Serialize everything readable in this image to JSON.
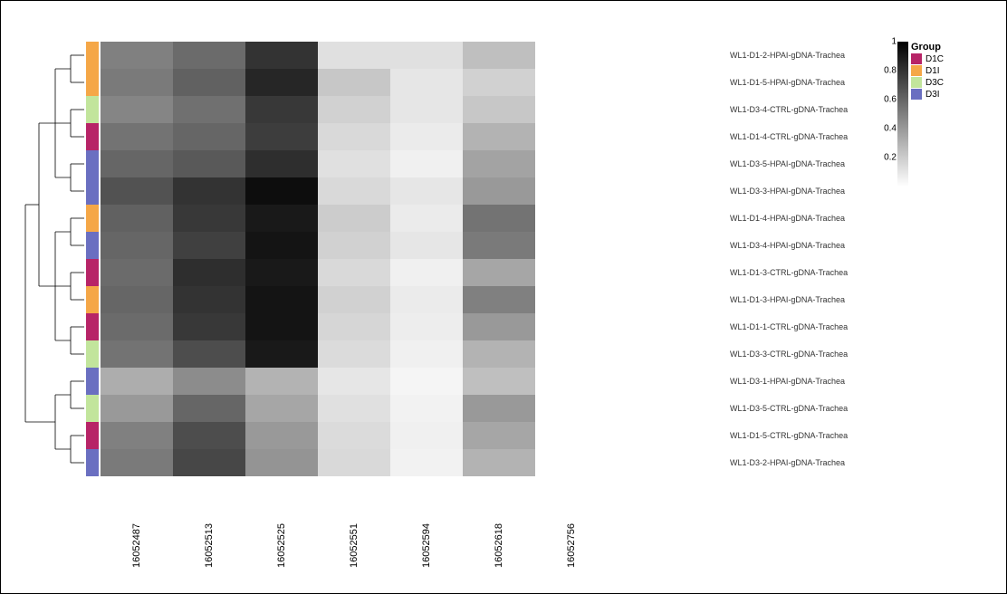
{
  "heatmap": {
    "type": "heatmap",
    "columns": [
      "16052487",
      "16052513",
      "16052525",
      "16052551",
      "16052594",
      "16052618",
      "16052756"
    ],
    "rows": [
      {
        "label": "WL1-D1-2-HPAI-gDNA-Trachea",
        "group": "D1I"
      },
      {
        "label": "WL1-D1-5-HPAI-gDNA-Trachea",
        "group": "D1I"
      },
      {
        "label": "WL1-D3-4-CTRL-gDNA-Trachea",
        "group": "D3C"
      },
      {
        "label": "WL1-D1-4-CTRL-gDNA-Trachea",
        "group": "D1C"
      },
      {
        "label": "WL1-D3-5-HPAI-gDNA-Trachea",
        "group": "D3I"
      },
      {
        "label": "WL1-D3-3-HPAI-gDNA-Trachea",
        "group": "D3I"
      },
      {
        "label": "WL1-D1-4-HPAI-gDNA-Trachea",
        "group": "D1I"
      },
      {
        "label": "WL1-D3-4-HPAI-gDNA-Trachea",
        "group": "D3I"
      },
      {
        "label": "WL1-D1-3-CTRL-gDNA-Trachea",
        "group": "D1C"
      },
      {
        "label": "WL1-D1-3-HPAI-gDNA-Trachea",
        "group": "D1I"
      },
      {
        "label": "WL1-D1-1-CTRL-gDNA-Trachea",
        "group": "D1C"
      },
      {
        "label": "WL1-D3-3-CTRL-gDNA-Trachea",
        "group": "D3C"
      },
      {
        "label": "WL1-D3-1-HPAI-gDNA-Trachea",
        "group": "D3I"
      },
      {
        "label": "WL1-D3-5-CTRL-gDNA-Trachea",
        "group": "D3C"
      },
      {
        "label": "WL1-D1-5-CTRL-gDNA-Trachea",
        "group": "D1C"
      },
      {
        "label": "WL1-D3-2-HPAI-gDNA-Trachea",
        "group": "D3I"
      }
    ],
    "values": [
      [
        0.5,
        0.58,
        0.8,
        0.12,
        0.12,
        0.25,
        0.0
      ],
      [
        0.52,
        0.62,
        0.85,
        0.22,
        0.1,
        0.18,
        0.0
      ],
      [
        0.48,
        0.56,
        0.78,
        0.18,
        0.1,
        0.22,
        0.0
      ],
      [
        0.55,
        0.6,
        0.76,
        0.15,
        0.08,
        0.3,
        0.0
      ],
      [
        0.6,
        0.65,
        0.82,
        0.12,
        0.06,
        0.36,
        0.0
      ],
      [
        0.68,
        0.8,
        0.95,
        0.15,
        0.1,
        0.4,
        0.0
      ],
      [
        0.62,
        0.78,
        0.9,
        0.2,
        0.08,
        0.55,
        0.0
      ],
      [
        0.6,
        0.75,
        0.92,
        0.18,
        0.1,
        0.52,
        0.0
      ],
      [
        0.58,
        0.82,
        0.9,
        0.15,
        0.06,
        0.35,
        0.0
      ],
      [
        0.6,
        0.8,
        0.92,
        0.18,
        0.08,
        0.5,
        0.0
      ],
      [
        0.58,
        0.78,
        0.92,
        0.16,
        0.07,
        0.4,
        0.0
      ],
      [
        0.55,
        0.7,
        0.9,
        0.14,
        0.06,
        0.3,
        0.0
      ],
      [
        0.32,
        0.45,
        0.3,
        0.1,
        0.04,
        0.25,
        0.0
      ],
      [
        0.4,
        0.6,
        0.35,
        0.12,
        0.05,
        0.4,
        0.0
      ],
      [
        0.5,
        0.7,
        0.4,
        0.14,
        0.06,
        0.35,
        0.0
      ],
      [
        0.52,
        0.72,
        0.42,
        0.15,
        0.05,
        0.3,
        0.0
      ]
    ],
    "value_min": 0.0,
    "value_max": 1.0,
    "colormap_low": "#ffffff",
    "colormap_high": "#000000",
    "background_color": "#ffffff",
    "col_label_fontsize": 11,
    "row_label_fontsize": 9
  },
  "groups": {
    "D1C": "#b72467",
    "D1I": "#f5a747",
    "D3C": "#c2e59c",
    "D3I": "#6a6fc1"
  },
  "legend": {
    "group_title": "Group",
    "items": [
      {
        "key": "D1C",
        "label": "D1C"
      },
      {
        "key": "D1I",
        "label": "D1I"
      },
      {
        "key": "D3C",
        "label": "D3C"
      },
      {
        "key": "D3I",
        "label": "D3I"
      }
    ],
    "scale_ticks": [
      {
        "v": 1.0,
        "label": "1"
      },
      {
        "v": 0.8,
        "label": "0.8"
      },
      {
        "v": 0.6,
        "label": "0.6"
      },
      {
        "v": 0.4,
        "label": "0.4"
      },
      {
        "v": 0.2,
        "label": "0.2"
      }
    ]
  },
  "dendrogram": {
    "stroke": "#000000",
    "stroke_width": 0.8,
    "clusters": [
      {
        "rows": [
          0,
          1,
          2,
          3,
          4,
          5
        ],
        "sub": [
          [
            0,
            1
          ],
          [
            2,
            3
          ],
          [
            4,
            5
          ]
        ]
      },
      {
        "rows": [
          6,
          7,
          8,
          9,
          10,
          11
        ],
        "sub": [
          [
            6,
            7
          ],
          [
            8,
            9
          ],
          [
            10,
            11
          ]
        ]
      },
      {
        "rows": [
          12,
          13,
          14,
          15
        ],
        "sub": [
          [
            12,
            13
          ],
          [
            14,
            15
          ]
        ]
      }
    ]
  }
}
